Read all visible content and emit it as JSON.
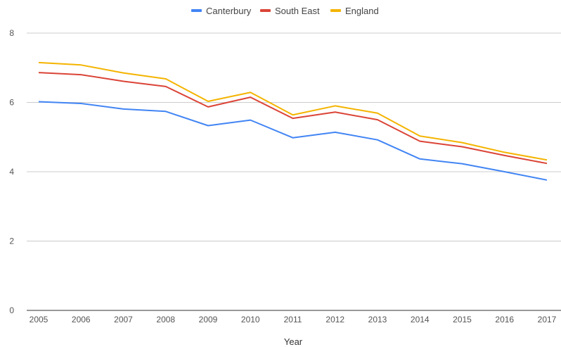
{
  "chart_data": {
    "type": "line",
    "xlabel": "Year",
    "ylabel": "",
    "x": [
      "2005",
      "2006",
      "2007",
      "2008",
      "2009",
      "2010",
      "2011",
      "2012",
      "2013",
      "2014",
      "2015",
      "2016",
      "2017"
    ],
    "ylim": [
      0,
      8
    ],
    "yticks": [
      "0",
      "2",
      "4",
      "6",
      "8"
    ],
    "grid": true,
    "legend": "top",
    "series": [
      {
        "name": "Canterbury",
        "color": "#4285f4",
        "values": [
          6.02,
          5.97,
          5.81,
          5.74,
          5.33,
          5.49,
          4.98,
          5.14,
          4.92,
          4.37,
          4.23,
          4.0,
          3.76
        ]
      },
      {
        "name": "South East",
        "color": "#db4437",
        "values": [
          6.86,
          6.8,
          6.61,
          6.46,
          5.87,
          6.15,
          5.54,
          5.72,
          5.5,
          4.88,
          4.72,
          4.47,
          4.24
        ]
      },
      {
        "name": "England",
        "color": "#f4b400",
        "values": [
          7.15,
          7.08,
          6.85,
          6.68,
          6.03,
          6.29,
          5.64,
          5.9,
          5.69,
          5.03,
          4.84,
          4.56,
          4.34
        ]
      }
    ]
  }
}
